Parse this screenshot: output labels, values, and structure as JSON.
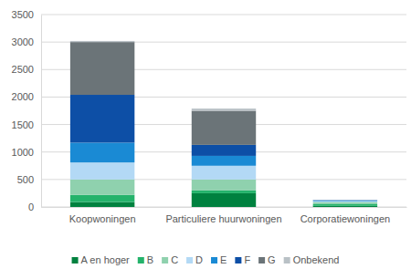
{
  "chart_data": {
    "type": "bar",
    "stacked": true,
    "grid": true,
    "legend": "bottom",
    "categories": [
      "Koopwoningen",
      "Particuliere huurwoningen",
      "Corporatiewoningen"
    ],
    "ylim": [
      0,
      3500
    ],
    "yticks": [
      0,
      500,
      1000,
      1500,
      2000,
      2500,
      3000,
      3500
    ],
    "series": [
      {
        "name": "A en hoger",
        "color": "#00813f",
        "values": [
          90,
          250,
          20
        ]
      },
      {
        "name": "B",
        "color": "#24b36b",
        "values": [
          130,
          50,
          30
        ]
      },
      {
        "name": "C",
        "color": "#8fd1ae",
        "values": [
          280,
          200,
          40
        ]
      },
      {
        "name": "D",
        "color": "#b3d9f5",
        "values": [
          310,
          250,
          15
        ]
      },
      {
        "name": "E",
        "color": "#1a8ad4",
        "values": [
          360,
          180,
          15
        ]
      },
      {
        "name": "F",
        "color": "#0d4fa6",
        "values": [
          870,
          200,
          5
        ]
      },
      {
        "name": "G",
        "color": "#6b7478",
        "values": [
          960,
          620,
          0
        ]
      },
      {
        "name": "Onbekend",
        "color": "#b9c1c6",
        "values": [
          20,
          40,
          5
        ]
      }
    ]
  }
}
